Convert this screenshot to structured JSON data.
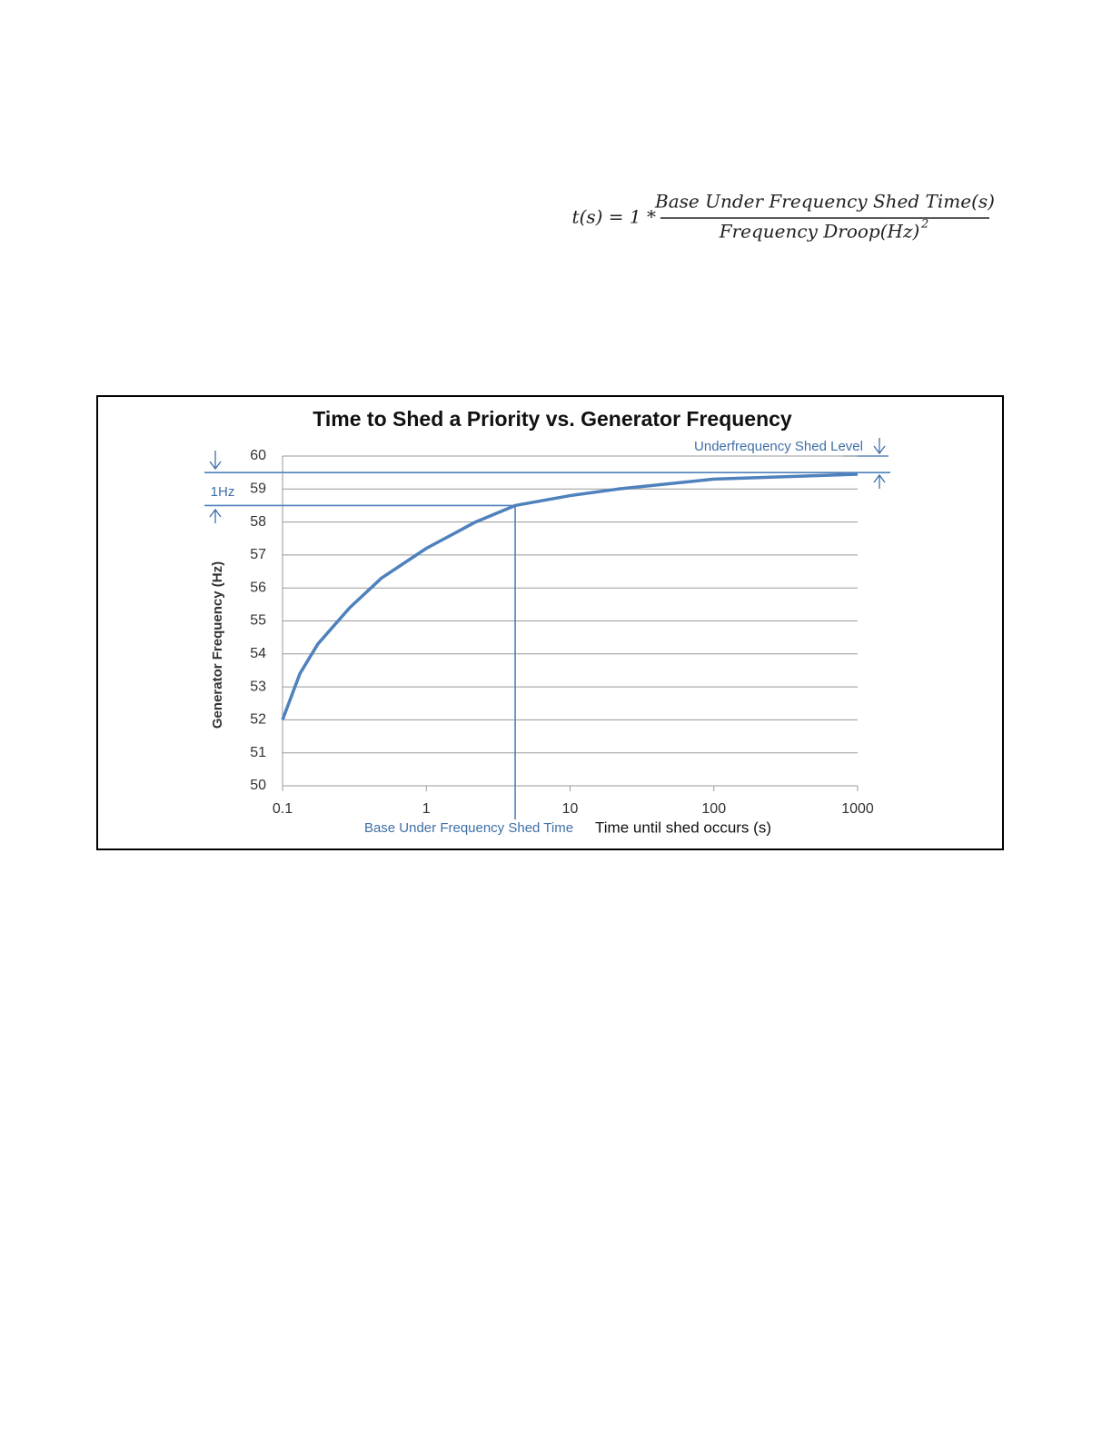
{
  "formula": {
    "lhs": "t(s) = 1 *",
    "numerator": "Base Under Frequency Shed Time(s)",
    "denominator": "Frequency Droop(Hz)",
    "exponent": "2"
  },
  "chart_data": {
    "type": "line",
    "title": "Time to Shed a Priority vs. Generator Frequency",
    "x_label": "Time until shed occurs (s)",
    "y_label": "Generator Frequency (Hz)",
    "x": [
      0.1,
      0.132,
      0.176,
      0.293,
      0.488,
      1,
      2.2,
      4.15,
      10,
      21.6,
      100,
      1000
    ],
    "values": [
      52.0,
      53.4,
      54.3,
      55.4,
      56.3,
      57.2,
      58.0,
      58.5,
      58.8,
      59.0,
      59.3,
      59.45
    ],
    "color": "#4f81bd",
    "xscale": "log",
    "grid": true,
    "xlim": [
      0.1,
      1000
    ],
    "xticks": [
      0.1,
      1,
      10,
      100,
      1000
    ],
    "ylim": [
      50,
      60
    ],
    "yticks": [
      50,
      51,
      52,
      53,
      54,
      55,
      56,
      57,
      58,
      59,
      60
    ],
    "annotations": {
      "shed_level": {
        "label": "Underfrequency Shed Level",
        "value": 59.5
      },
      "droop_band": {
        "label": "1Hz",
        "bottom": 58.5
      },
      "base_time": {
        "label": "Base Under Frequency Shed Time",
        "value": 4.15
      }
    }
  }
}
